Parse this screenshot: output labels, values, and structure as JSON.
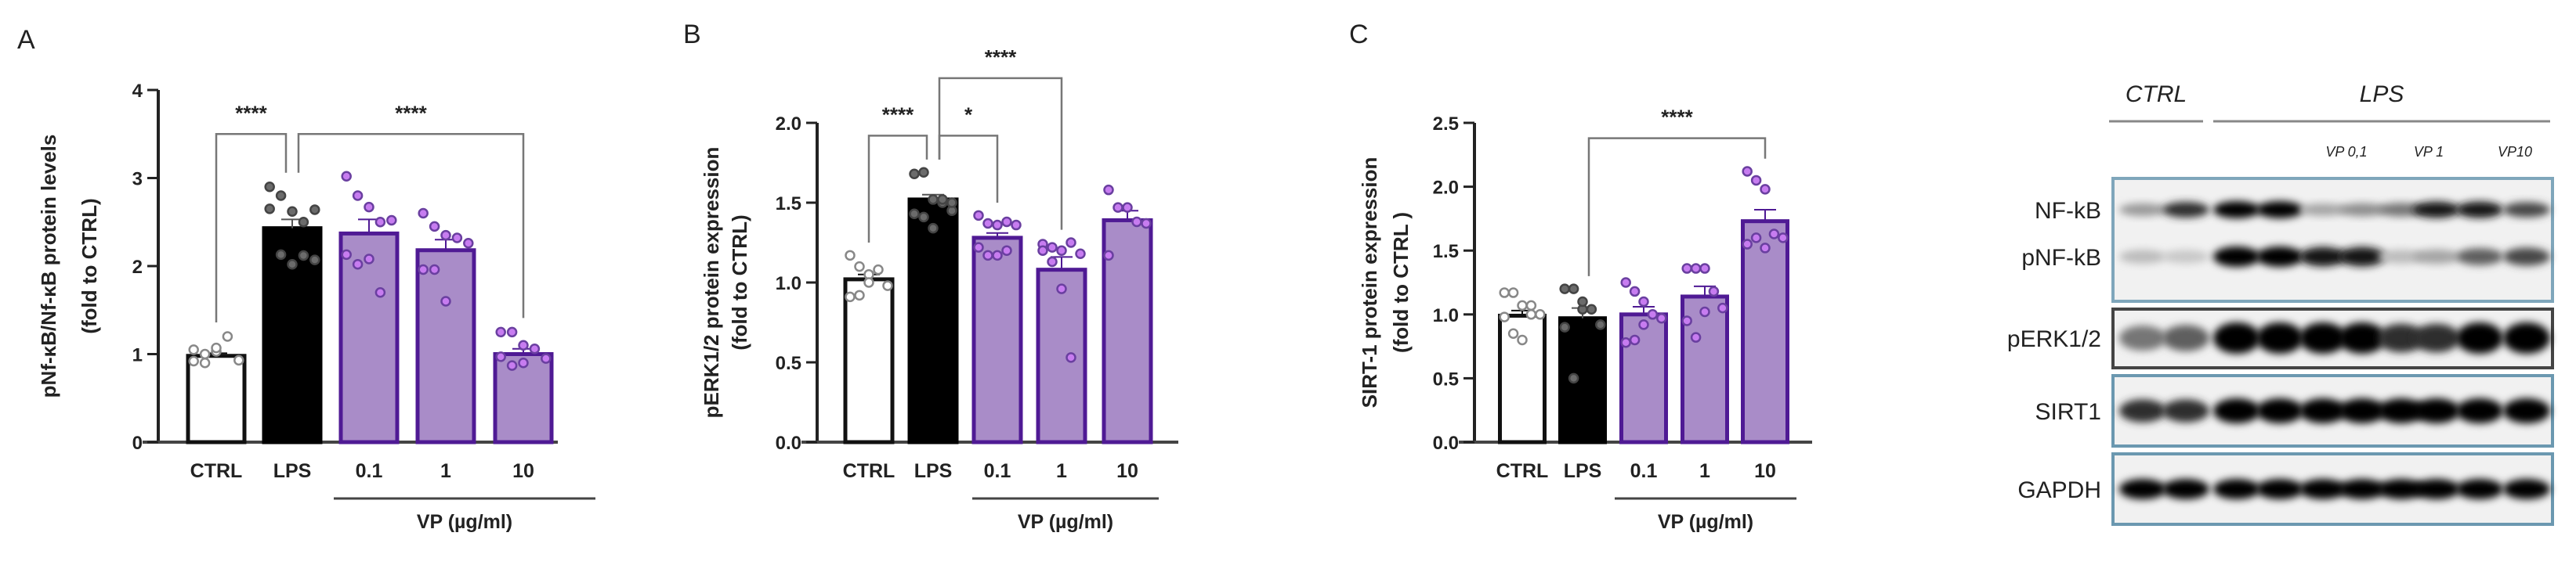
{
  "colors": {
    "ctrl_fill": "#ffffff",
    "lps_fill": "#000000",
    "vp_fill": "#a98cc8",
    "vp_stroke": "#4f1a94",
    "vp_dot": "#c77cf0",
    "lps_dot": "#6b6b6b",
    "bracket": "#777777"
  },
  "chart_data": [
    {
      "panel_label": "A",
      "type": "bar",
      "ylabel": [
        "pNf-κB/Nf-κB protein levels",
        "(fold to CTRL)"
      ],
      "categories": [
        "CTRL",
        "LPS",
        "0.1",
        "1",
        "10"
      ],
      "group_label": "VP (µg/ml)",
      "ylim": [
        0,
        4
      ],
      "yticks": [
        "0",
        "1",
        "2",
        "3",
        "4"
      ],
      "ytick_values": [
        0,
        1,
        2,
        3,
        4
      ],
      "means": [
        0.98,
        2.43,
        2.37,
        2.18,
        1.0
      ],
      "sem": [
        0.03,
        0.1,
        0.16,
        0.12,
        0.06
      ],
      "points": [
        [
          0.92,
          1.0,
          1.03,
          1.2,
          0.93,
          1.05,
          0.9,
          1.07
        ],
        [
          2.9,
          2.8,
          2.62,
          2.5,
          2.64,
          2.65,
          2.13,
          2.02,
          2.12,
          2.07
        ],
        [
          3.02,
          2.8,
          2.67,
          2.5,
          2.52,
          2.13,
          2.02,
          2.08,
          1.7
        ],
        [
          2.6,
          2.45,
          2.35,
          2.32,
          2.26,
          1.96,
          1.96,
          1.6
        ],
        [
          1.25,
          1.25,
          1.1,
          1.06,
          0.95,
          0.97,
          0.87,
          0.9
        ]
      ],
      "comparisons": [
        {
          "from": "CTRL",
          "to": "LPS",
          "label": "****",
          "y": 3.5
        },
        {
          "from": "LPS",
          "to": "10",
          "label": "****",
          "y": 3.5
        }
      ]
    },
    {
      "panel_label": "B",
      "type": "bar",
      "ylabel": [
        "pERK1/2 protein expression",
        "(fold to CTRL)"
      ],
      "categories": [
        "CTRL",
        "LPS",
        "0.1",
        "1",
        "10"
      ],
      "group_label": "VP (µg/ml)",
      "ylim": [
        0,
        2
      ],
      "yticks": [
        "0.0",
        "0.5",
        "1.0",
        "1.5",
        "2.0"
      ],
      "ytick_values": [
        0,
        0.5,
        1,
        1.5,
        2
      ],
      "means": [
        1.02,
        1.52,
        1.28,
        1.08,
        1.39
      ],
      "sem": [
        0.03,
        0.03,
        0.03,
        0.08,
        0.06
      ],
      "points": [
        [
          1.17,
          1.1,
          1.05,
          1.08,
          0.98,
          0.91,
          0.92,
          1.0
        ],
        [
          1.68,
          1.69,
          1.52,
          1.5,
          1.45,
          1.43,
          1.41,
          1.34,
          1.52,
          1.5
        ],
        [
          1.42,
          1.37,
          1.36,
          1.38,
          1.36,
          1.22,
          1.17,
          1.17,
          1.2
        ],
        [
          1.24,
          1.22,
          1.2,
          1.25,
          1.18,
          1.2,
          1.13,
          0.96,
          0.53
        ],
        [
          1.58,
          1.47,
          1.47,
          1.38,
          1.37,
          1.17
        ]
      ],
      "comparisons": [
        {
          "from": "CTRL",
          "to": "LPS",
          "label": "****",
          "y": 1.92
        },
        {
          "from": "LPS",
          "to": "0.1",
          "label": "*",
          "y": 1.92
        },
        {
          "from": "LPS",
          "to": "1",
          "label": "****",
          "y": 2.28
        }
      ]
    },
    {
      "panel_label": "C",
      "type": "bar",
      "ylabel": [
        "SIRT-1 protein expression",
        "(fold to CTRL )"
      ],
      "categories": [
        "CTRL",
        "LPS",
        "0.1",
        "1",
        "10"
      ],
      "group_label": "VP (µg/ml)",
      "ylim": [
        0,
        2.5
      ],
      "yticks": [
        "0.0",
        "0.5",
        "1.0",
        "1.5",
        "2.0",
        "2.5"
      ],
      "ytick_values": [
        0,
        0.5,
        1,
        1.5,
        2,
        2.5
      ],
      "means": [
        0.99,
        0.97,
        1.0,
        1.14,
        1.73
      ],
      "sem": [
        0.04,
        0.08,
        0.06,
        0.08,
        0.09
      ],
      "points": [
        [
          1.17,
          1.17,
          1.07,
          1.07,
          1.0,
          0.98,
          0.85,
          0.8,
          1.0
        ],
        [
          1.2,
          1.2,
          1.04,
          1.04,
          0.92,
          0.9,
          0.5,
          1.1
        ],
        [
          1.25,
          1.18,
          1.1,
          1.0,
          0.97,
          0.78,
          0.8,
          0.92
        ],
        [
          1.36,
          1.36,
          1.36,
          1.18,
          1.05,
          0.95,
          0.82,
          1.02
        ],
        [
          2.12,
          2.05,
          1.98,
          1.63,
          1.6,
          1.55,
          1.6,
          1.52
        ]
      ],
      "comparisons": [
        {
          "from": "LPS",
          "to": "10",
          "label": "****",
          "y": 2.38
        }
      ]
    }
  ],
  "blot": {
    "header_ctrl": "CTRL",
    "header_lps": "LPS",
    "vp_labels": [
      "VP 0,1",
      "VP 1",
      "VP10"
    ],
    "rows": [
      {
        "label": "NF-kB",
        "bands": [
          0.35,
          0.8,
          1.0,
          1.0,
          0.3,
          0.4,
          0.5,
          0.9,
          0.9,
          0.7
        ]
      },
      {
        "label": "pNF-kB",
        "bands": [
          0.2,
          0.15,
          1.0,
          1.0,
          0.9,
          0.9,
          0.2,
          0.3,
          0.6,
          0.7
        ]
      },
      {
        "label": "pERK1/2",
        "bands": [
          0.5,
          0.6,
          1.0,
          1.0,
          1.0,
          1.0,
          0.8,
          0.8,
          1.0,
          1.0
        ]
      },
      {
        "label": "SIRT1",
        "bands": [
          0.8,
          0.8,
          1.0,
          1.0,
          1.0,
          1.0,
          1.0,
          1.0,
          1.0,
          1.0
        ]
      },
      {
        "label": "GAPDH",
        "bands": [
          1.0,
          1.0,
          1.0,
          1.0,
          1.0,
          1.0,
          1.0,
          1.0,
          1.0,
          1.0
        ]
      }
    ]
  }
}
